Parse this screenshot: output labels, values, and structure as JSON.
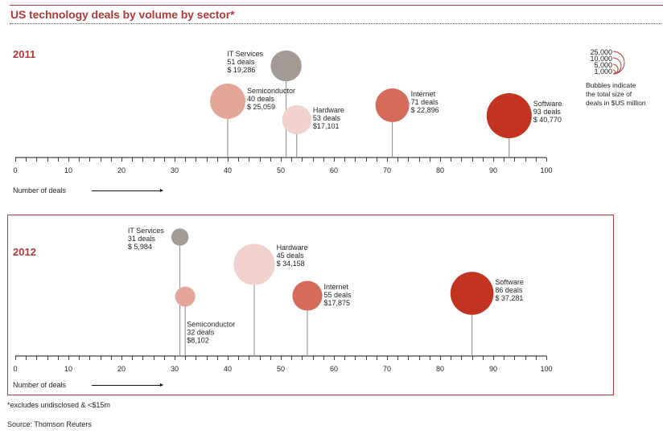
{
  "title": "US technology deals by volume by sector*",
  "legend": {
    "sizes": [
      "25,000",
      "10,000",
      "5,000",
      "1,000"
    ],
    "description": [
      "Bubbles indicate",
      "the total size of",
      "deals in $US million"
    ]
  },
  "footnote": "*excludes undisclosed & <$15m",
  "source": "Source: Thomson Reuters",
  "colors": {
    "accent": "#b03a3a",
    "IT Services": "#a39a95",
    "Semiconductor": "#e3a698",
    "Hardware": "#f1d2cc",
    "Internet": "#d66a5b",
    "Software": "#c23321"
  },
  "chart_data": [
    {
      "type": "scatter",
      "title": "2011",
      "xlabel": "Number of deals",
      "xlim": [
        0,
        100
      ],
      "xticks": [
        0,
        10,
        20,
        30,
        40,
        50,
        60,
        70,
        80,
        90,
        100
      ],
      "xtick_labels": [
        "0",
        "10",
        "20",
        "30",
        "40",
        "50",
        "60",
        "70",
        "80",
        "90",
        "100"
      ],
      "minor_tick_step": 2,
      "size_unit": "$US million",
      "points": [
        {
          "sector": "IT Services",
          "deals": 51,
          "value": 19286,
          "deals_label": "51 deals",
          "value_label": "$ 19,286"
        },
        {
          "sector": "Semiconductor",
          "deals": 40,
          "value": 25059,
          "deals_label": "40 deals",
          "value_label": "$ 25,059"
        },
        {
          "sector": "Hardware",
          "deals": 53,
          "value": 17101,
          "deals_label": "53 deals",
          "value_label": "$17,101"
        },
        {
          "sector": "Internet",
          "deals": 71,
          "value": 22896,
          "deals_label": "71 deals",
          "value_label": "$ 22,896"
        },
        {
          "sector": "Software",
          "deals": 93,
          "value": 40770,
          "deals_label": "93 deals",
          "value_label": "$ 40,770"
        }
      ]
    },
    {
      "type": "scatter",
      "title": "2012",
      "xlabel": "Number of deals",
      "xlim": [
        0,
        100
      ],
      "xticks": [
        0,
        10,
        20,
        30,
        40,
        50,
        60,
        70,
        80,
        90,
        100
      ],
      "xtick_labels": [
        "0",
        "10",
        "20",
        "30",
        "40",
        "50",
        "60",
        "70",
        "80",
        "90",
        "100"
      ],
      "minor_tick_step": 2,
      "size_unit": "$US million",
      "points": [
        {
          "sector": "IT Services",
          "deals": 31,
          "value": 5984,
          "deals_label": "31 deals",
          "value_label": "$ 5,984"
        },
        {
          "sector": "Semiconductor",
          "deals": 32,
          "value": 8102,
          "deals_label": "32 deals",
          "value_label": "$8,102"
        },
        {
          "sector": "Hardware",
          "deals": 45,
          "value": 34158,
          "deals_label": "45 deals",
          "value_label": "$ 34,158"
        },
        {
          "sector": "Internet",
          "deals": 55,
          "value": 17875,
          "deals_label": "55 deals",
          "value_label": "$17,875"
        },
        {
          "sector": "Software",
          "deals": 86,
          "value": 37281,
          "deals_label": "86 deals",
          "value_label": "$ 37,281"
        }
      ]
    }
  ]
}
